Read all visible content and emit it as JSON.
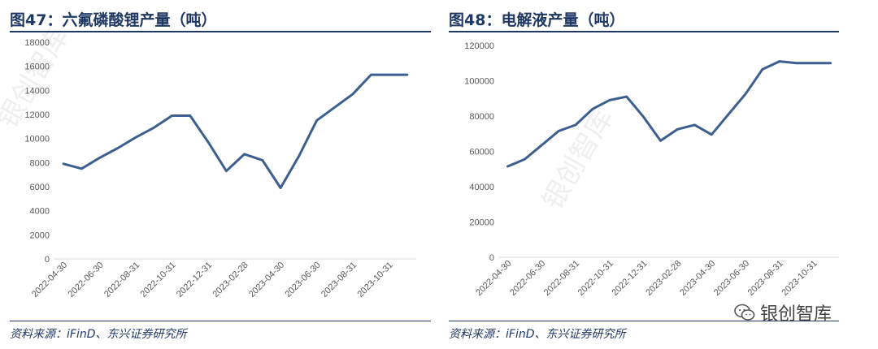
{
  "figures": {
    "left": {
      "title": "图47：六氟磷酸锂产量（吨）",
      "source": "资料来源：iFinD、东兴证券研究所",
      "watermark": "银创智库"
    },
    "right": {
      "title": "图48：电解液产量（吨）",
      "source": "资料来源：iFinD、东兴证券研究所",
      "watermark": "银创智库"
    }
  },
  "wechat_badge": {
    "text": "银创智库",
    "icon": "wechat-icon"
  },
  "colors": {
    "line": "#3d5f8f",
    "title": "#1f3864",
    "axis": "#d9d9d9",
    "tick": "#595959"
  },
  "chart_data": [
    {
      "type": "line",
      "title": "图47：六氟磷酸锂产量（吨）",
      "x": [
        "2022-04-30",
        "2022-05-31",
        "2022-06-30",
        "2022-07-31",
        "2022-08-31",
        "2022-09-30",
        "2022-10-31",
        "2022-11-30",
        "2022-12-31",
        "2023-01-31",
        "2023-02-28",
        "2023-03-31",
        "2023-04-30",
        "2023-05-31",
        "2023-06-30",
        "2023-07-31",
        "2023-08-31",
        "2023-09-30",
        "2023-10-31",
        "2023-11-30"
      ],
      "x_tick_labels": [
        "2022-04-30",
        "2022-06-30",
        "2022-08-31",
        "2022-10-31",
        "2022-12-31",
        "2023-02-28",
        "2023-04-30",
        "2023-06-30",
        "2023-08-31",
        "2023-10-31"
      ],
      "series": [
        {
          "values": [
            7900,
            7500,
            8400,
            9200,
            10100,
            10900,
            11900,
            11900,
            9700,
            7300,
            8700,
            8200,
            5900,
            8500,
            11500,
            12600,
            13700,
            15300,
            15300,
            15300
          ]
        }
      ],
      "ylim": [
        0,
        18000
      ],
      "yticks": [
        0,
        2000,
        4000,
        6000,
        8000,
        10000,
        12000,
        14000,
        16000,
        18000
      ],
      "grid": false,
      "legend": "none"
    },
    {
      "type": "line",
      "title": "图48：电解液产量（吨）",
      "x": [
        "2022-04-30",
        "2022-05-31",
        "2022-06-30",
        "2022-07-31",
        "2022-08-31",
        "2022-09-30",
        "2022-10-31",
        "2022-11-30",
        "2022-12-31",
        "2023-01-31",
        "2023-02-28",
        "2023-03-31",
        "2023-04-30",
        "2023-05-31",
        "2023-06-30",
        "2023-07-31",
        "2023-08-31",
        "2023-09-30",
        "2023-10-31",
        "2023-11-30"
      ],
      "x_tick_labels": [
        "2022-04-30",
        "2022-06-30",
        "2022-08-31",
        "2022-10-31",
        "2022-12-31",
        "2023-02-28",
        "2023-04-30",
        "2023-06-30",
        "2023-08-31",
        "2023-10-31"
      ],
      "series": [
        {
          "values": [
            51500,
            55500,
            63500,
            71500,
            75000,
            84000,
            89000,
            91000,
            79500,
            66000,
            72500,
            75000,
            69500,
            81000,
            92500,
            106500,
            111000,
            110000,
            110000,
            110000
          ]
        }
      ],
      "ylim": [
        0,
        120000
      ],
      "yticks": [
        0,
        20000,
        40000,
        60000,
        80000,
        100000,
        120000
      ],
      "grid": false,
      "legend": "none"
    }
  ]
}
